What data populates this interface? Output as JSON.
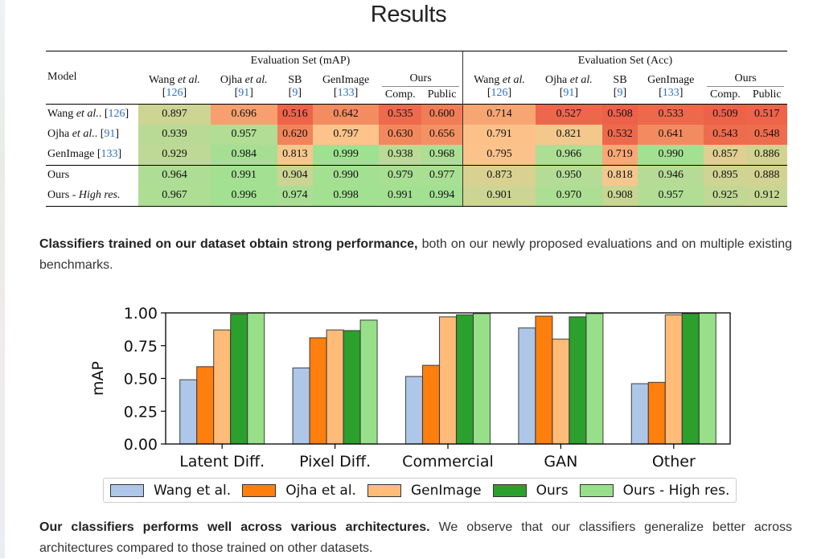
{
  "title": "Results",
  "table": {
    "model_header": "Model",
    "groups": [
      "Evaluation Set (mAP)",
      "Evaluation Set (Acc)"
    ],
    "columns": [
      {
        "name_pre": "Wang ",
        "name_it": "et al.",
        "cite": "126"
      },
      {
        "name_pre": "Ojha ",
        "name_it": "et al.",
        "cite": "91"
      },
      {
        "name_pre": "SB",
        "name_it": "",
        "cite": "9"
      },
      {
        "name_pre": "GenImage",
        "name_it": "",
        "cite": "133"
      }
    ],
    "ours_label": "Ours",
    "ours_sub": [
      "Comp.",
      "Public"
    ],
    "rows": [
      {
        "model_pre": "Wang ",
        "model_it": "et al.",
        "model_post": ". ",
        "cite": "[126]",
        "values": [
          "0.897",
          "0.696",
          "0.516",
          "0.642",
          "0.535",
          "0.600",
          "0.714",
          "0.527",
          "0.508",
          "0.533",
          "0.509",
          "0.517"
        ],
        "bold": []
      },
      {
        "model_pre": "Ojha ",
        "model_it": "et al.",
        "model_post": ". ",
        "cite": "[91]",
        "values": [
          "0.939",
          "0.957",
          "0.620",
          "0.797",
          "0.630",
          "0.656",
          "0.791",
          "0.821",
          "0.532",
          "0.641",
          "0.543",
          "0.548"
        ],
        "bold": []
      },
      {
        "model_pre": "GenImage ",
        "model_it": "",
        "model_post": "",
        "cite": "[133]",
        "values": [
          "0.929",
          "0.984",
          "0.813",
          "0.999",
          "0.938",
          "0.968",
          "0.795",
          "0.966",
          "0.719",
          "0.990",
          "0.857",
          "0.886"
        ],
        "bold": [
          3,
          9
        ]
      },
      {
        "model_pre": "Ours",
        "model_it": "",
        "model_post": "",
        "cite": "",
        "values": [
          "0.964",
          "0.991",
          "0.904",
          "0.990",
          "0.979",
          "0.977",
          "0.873",
          "0.950",
          "0.818",
          "0.946",
          "0.895",
          "0.888"
        ],
        "bold": []
      },
      {
        "model_pre": "Ours - ",
        "model_it": "High res.",
        "model_post": "",
        "cite": "",
        "values": [
          "0.967",
          "0.996",
          "0.974",
          "0.998",
          "0.991",
          "0.994",
          "0.901",
          "0.970",
          "0.908",
          "0.957",
          "0.925",
          "0.912"
        ],
        "bold": [
          0,
          1,
          2,
          4,
          5,
          6,
          7,
          8,
          10,
          11
        ]
      }
    ]
  },
  "paragraph1": {
    "bold": "Classifiers trained on our dataset obtain strong performance,",
    "rest": " both on our newly proposed evaluations and on multiple existing benchmarks."
  },
  "paragraph2": {
    "bold": "Our classifiers performs well across various architectures.",
    "rest": " We observe that our classifiers generalize better across architectures compared to those trained on other datasets."
  },
  "chart_data": {
    "type": "bar",
    "title": "",
    "xlabel": "",
    "ylabel": "mAP",
    "ylim": [
      0,
      1.0
    ],
    "yticks": [
      "0.00",
      "0.25",
      "0.50",
      "0.75",
      "1.00"
    ],
    "grid": false,
    "legend_position": "bottom",
    "categories": [
      "Latent Diff.",
      "Pixel Diff.",
      "Commercial",
      "GAN",
      "Other"
    ],
    "series": [
      {
        "name": "Wang et al.",
        "color": "#aec7e8",
        "values": [
          0.49,
          0.58,
          0.515,
          0.885,
          0.46
        ]
      },
      {
        "name": "Ojha et al.",
        "color": "#ff7f0e",
        "values": [
          0.59,
          0.81,
          0.6,
          0.975,
          0.47
        ]
      },
      {
        "name": "GenImage",
        "color": "#ffbb78",
        "values": [
          0.87,
          0.87,
          0.97,
          0.8,
          0.985
        ]
      },
      {
        "name": "Ours",
        "color": "#2ca02c",
        "values": [
          0.99,
          0.865,
          0.985,
          0.97,
          0.995
        ]
      },
      {
        "name": "Ours - High res.",
        "color": "#98df8a",
        "values": [
          1.0,
          0.945,
          0.995,
          0.995,
          1.0
        ]
      }
    ]
  }
}
